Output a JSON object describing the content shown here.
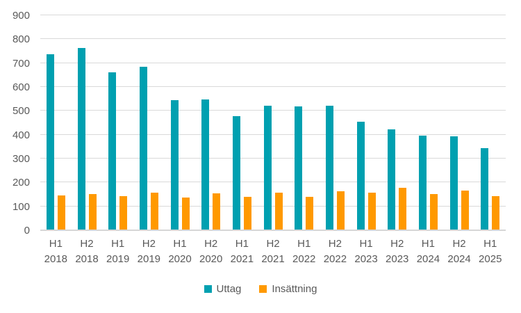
{
  "colors": {
    "uttag": "#00A0B0",
    "insattning": "#FF9900",
    "gridline": "#D9D9D9",
    "axis_line": "#D6D6D6",
    "text": "#595959",
    "background": "#FFFFFF"
  },
  "chart_data": {
    "type": "bar",
    "categories": [
      "H1 2018",
      "H2 2018",
      "H1 2019",
      "H2 2019",
      "H1 2020",
      "H2 2020",
      "H1 2021",
      "H2 2021",
      "H1 2022",
      "H2 2022",
      "H1 2023",
      "H2 2023",
      "H1 2024",
      "H2 2024",
      "H1 2025"
    ],
    "series": [
      {
        "name": "Uttag",
        "color": "#00A0B0",
        "values": [
          740,
          765,
          662,
          686,
          546,
          547,
          478,
          523,
          519,
          522,
          455,
          423,
          397,
          394,
          342
        ]
      },
      {
        "name": "Insättning",
        "color": "#FF9900",
        "values": [
          143,
          150,
          142,
          155,
          134,
          152,
          137,
          155,
          138,
          161,
          155,
          175,
          151,
          163,
          142
        ]
      }
    ],
    "title": "",
    "xlabel": "",
    "ylabel": "",
    "ylim": [
      0,
      900
    ],
    "yticks": [
      0,
      100,
      200,
      300,
      400,
      500,
      600,
      700,
      800,
      900
    ],
    "grid": "horizontal",
    "legend_position": "bottom"
  }
}
